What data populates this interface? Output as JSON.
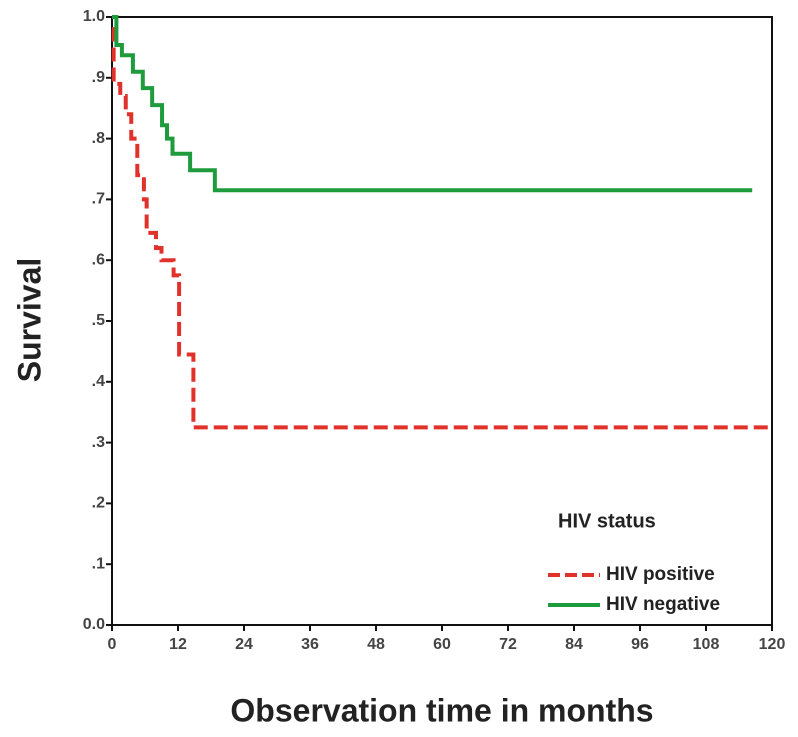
{
  "chart_data": {
    "type": "line",
    "y_label": "Survival",
    "x_label": "Observation time in months",
    "legend_title": "HIV status",
    "legend": "lower right",
    "xlim": [
      0,
      120
    ],
    "xticks": [
      0,
      12,
      24,
      36,
      48,
      60,
      72,
      84,
      96,
      108,
      120
    ],
    "ylim": [
      0,
      1
    ],
    "yticks": [
      {
        "value": 0,
        "label": "0.0"
      },
      {
        "value": 0.1,
        "label": ".1"
      },
      {
        "value": 0.2,
        "label": ".2"
      },
      {
        "value": 0.3,
        "label": ".3"
      },
      {
        "value": 0.4,
        "label": ".4"
      },
      {
        "value": 0.5,
        "label": ".5"
      },
      {
        "value": 0.6,
        "label": ".6"
      },
      {
        "value": 0.7,
        "label": ".7"
      },
      {
        "value": 0.8,
        "label": ".8"
      },
      {
        "value": 0.9,
        "label": ".9"
      },
      {
        "value": 1,
        "label": "1.0"
      }
    ],
    "series": [
      {
        "name": "HIV positive",
        "color": "#e0312b",
        "dashed": true,
        "x": [
          0,
          0.3,
          0.3,
          1.5,
          1.5,
          2.5,
          2.5,
          3.5,
          3.5,
          4.6,
          4.6,
          5.8,
          5.8,
          6.3,
          6.3,
          8,
          8,
          9,
          9,
          11.2,
          11.2,
          12.2,
          12.2,
          14.8,
          14.8,
          120
        ],
        "values": [
          0.98,
          0.98,
          0.89,
          0.89,
          0.87,
          0.87,
          0.84,
          0.84,
          0.8,
          0.8,
          0.74,
          0.74,
          0.7,
          0.7,
          0.645,
          0.645,
          0.62,
          0.62,
          0.6,
          0.6,
          0.575,
          0.575,
          0.445,
          0.445,
          0.325,
          0.325
        ]
      },
      {
        "name": "HIV negative",
        "color": "#1e9b3c",
        "dashed": false,
        "x": [
          0,
          0.8,
          0.8,
          1.8,
          1.8,
          3.8,
          3.8,
          5.6,
          5.6,
          7.3,
          7.3,
          9.1,
          9.1,
          10,
          10,
          11,
          11,
          14.2,
          14.2,
          18.7,
          18.7,
          116.4
        ],
        "values": [
          1,
          1,
          0.954,
          0.954,
          0.937,
          0.937,
          0.91,
          0.91,
          0.883,
          0.883,
          0.855,
          0.855,
          0.822,
          0.822,
          0.8,
          0.8,
          0.775,
          0.775,
          0.748,
          0.748,
          0.715,
          0.715
        ]
      }
    ]
  }
}
